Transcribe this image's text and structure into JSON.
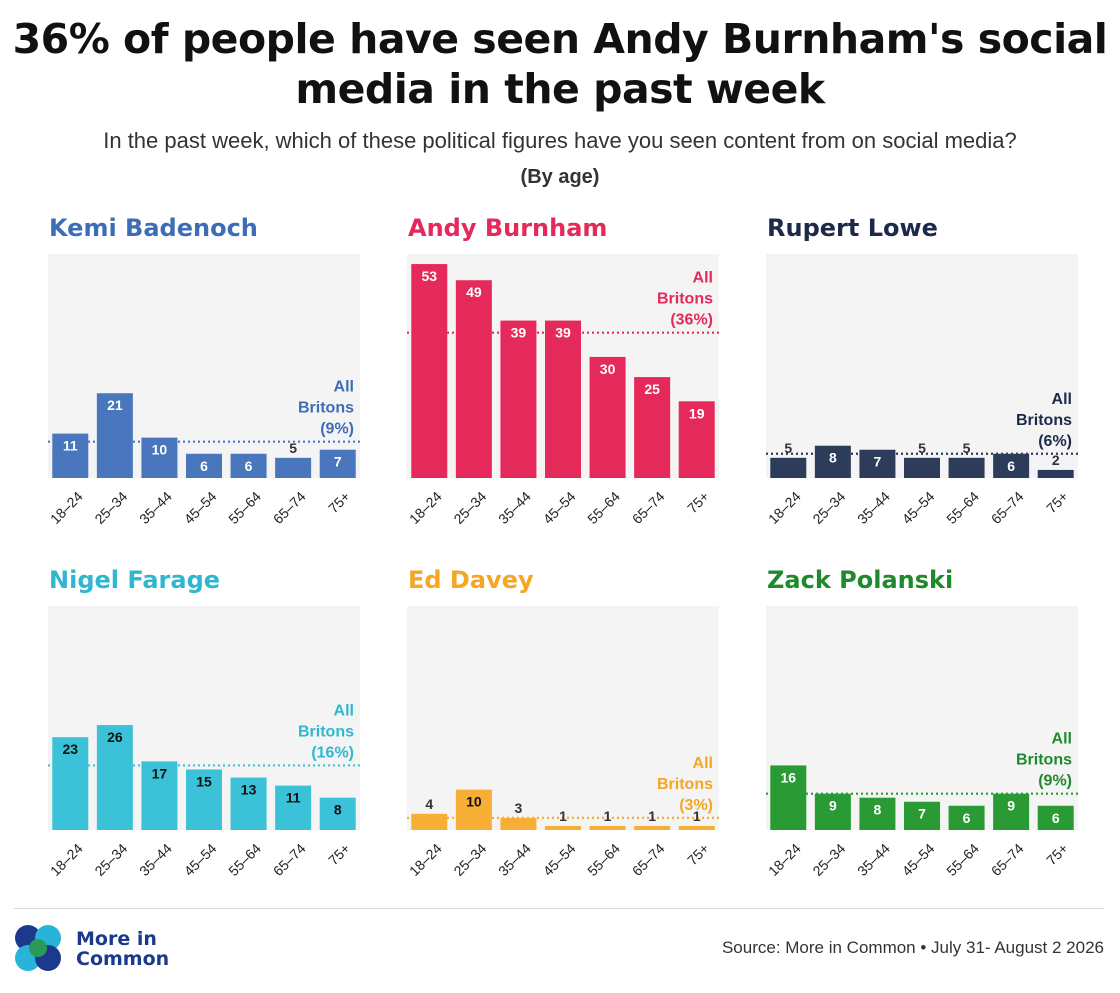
{
  "title_line1": "36% of people have seen Andy Burnham's social",
  "title_line2": "media in the past week",
  "subtitle": "In the past week, which of these political figures have you seen content from on social media?",
  "subtitle2": "(By age)",
  "chart_data": [
    {
      "type": "bar",
      "title": "Kemi Badenoch",
      "color": "#4a76bd",
      "title_color": "#3d6db5",
      "categories": [
        "18–24",
        "25–34",
        "35–44",
        "45–54",
        "55–64",
        "65–74",
        "75+"
      ],
      "values": [
        11,
        21,
        10,
        6,
        6,
        5,
        7
      ],
      "reference": {
        "value": 9,
        "label": [
          "All",
          "Britons",
          "(9%)"
        ]
      },
      "ylim": [
        0,
        55
      ]
    },
    {
      "type": "bar",
      "title": "Andy Burnham",
      "color": "#e5295a",
      "title_color": "#e5295a",
      "categories": [
        "18–24",
        "25–34",
        "35–44",
        "45–54",
        "55–64",
        "65–74",
        "75+"
      ],
      "values": [
        53,
        49,
        39,
        39,
        30,
        25,
        19
      ],
      "reference": {
        "value": 36,
        "label": [
          "All",
          "Britons",
          "(36%)"
        ]
      },
      "ylim": [
        0,
        55
      ]
    },
    {
      "type": "bar",
      "title": "Rupert Lowe",
      "color": "#2e3c5c",
      "title_color": "#1c2a4a",
      "categories": [
        "18–24",
        "25–34",
        "35–44",
        "45–54",
        "55–64",
        "65–74",
        "75+"
      ],
      "values": [
        5,
        8,
        7,
        5,
        5,
        6,
        2
      ],
      "reference": {
        "value": 6,
        "label": [
          "All",
          "Britons",
          "(6%)"
        ]
      },
      "ylim": [
        0,
        55
      ]
    },
    {
      "type": "bar",
      "title": "Nigel Farage",
      "color": "#3cc2d8",
      "title_color": "#2fb7d0",
      "categories": [
        "18–24",
        "25–34",
        "35–44",
        "45–54",
        "55–64",
        "65–74",
        "75+"
      ],
      "values": [
        23,
        26,
        17,
        15,
        13,
        11,
        8
      ],
      "reference": {
        "value": 16,
        "label": [
          "All",
          "Britons",
          "(16%)"
        ]
      },
      "ylim": [
        0,
        55
      ]
    },
    {
      "type": "bar",
      "title": "Ed Davey",
      "color": "#f7ae37",
      "title_color": "#f5a623",
      "categories": [
        "18–24",
        "25–34",
        "35–44",
        "45–54",
        "55–64",
        "65–74",
        "75+"
      ],
      "values": [
        4,
        10,
        3,
        1,
        1,
        1,
        1
      ],
      "reference": {
        "value": 3,
        "label": [
          "All",
          "Britons",
          "(3%)"
        ]
      },
      "ylim": [
        0,
        55
      ]
    },
    {
      "type": "bar",
      "title": "Zack Polanski",
      "color": "#2a9a34",
      "title_color": "#1f8a2c",
      "categories": [
        "18–24",
        "25–34",
        "35–44",
        "45–54",
        "55–64",
        "65–74",
        "75+"
      ],
      "values": [
        16,
        9,
        8,
        7,
        6,
        9,
        6
      ],
      "reference": {
        "value": 9,
        "label": [
          "All",
          "Britons",
          "(9%)"
        ]
      },
      "ylim": [
        0,
        55
      ]
    }
  ],
  "footer": {
    "logo_line1": "More in",
    "logo_line2": "Common",
    "source": "Source: More in Common • July 31- August 2 2026"
  },
  "colors": {
    "panel_bg": "#f4f4f4",
    "logo_dark": "#1c3a8c",
    "logo_light": "#28b4d8",
    "logo_green": "#2a9a5a"
  }
}
